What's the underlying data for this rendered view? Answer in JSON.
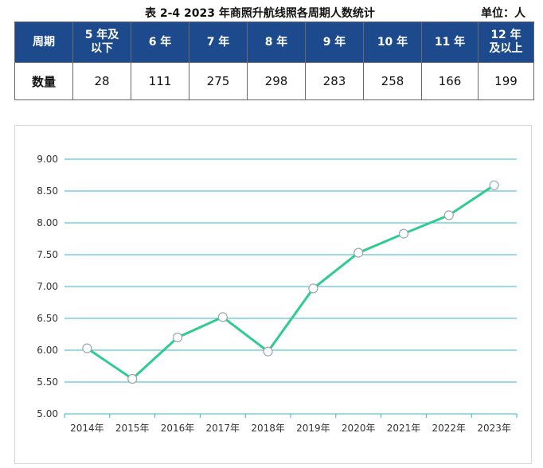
{
  "caption": {
    "title": "表 2-4  2023 年商照升航线照各周期人数统计",
    "unit": "单位：人"
  },
  "table": {
    "headers": [
      "周期",
      "5 年及\n以下",
      "6 年",
      "7 年",
      "8 年",
      "9 年",
      "10 年",
      "11 年",
      "12 年\n及以上"
    ],
    "row_label": "数量",
    "values": [
      "28",
      "111",
      "275",
      "298",
      "283",
      "258",
      "166",
      "199"
    ],
    "colors": {
      "header_bg": "#1d4a8c",
      "header_text": "#ffffff"
    }
  },
  "chart_data": {
    "type": "line",
    "categories": [
      "2014年",
      "2015年",
      "2016年",
      "2017年",
      "2018年",
      "2019年",
      "2020年",
      "2021年",
      "2022年",
      "2023年"
    ],
    "series": [
      {
        "values": [
          6.03,
          5.55,
          6.2,
          6.52,
          5.98,
          6.97,
          7.53,
          7.83,
          8.12,
          8.59
        ]
      }
    ],
    "title": "",
    "xlabel": "",
    "ylabel": "",
    "ylim": [
      5.0,
      9.0
    ],
    "yticks": [
      "5.00",
      "5.50",
      "6.00",
      "6.50",
      "7.00",
      "7.50",
      "8.00",
      "8.50",
      "9.00"
    ],
    "grid": true,
    "legend": "none",
    "colors": {
      "line": "#2ecc8f",
      "grid": "#35b6cc",
      "marker_fill": "#ffffff"
    }
  }
}
